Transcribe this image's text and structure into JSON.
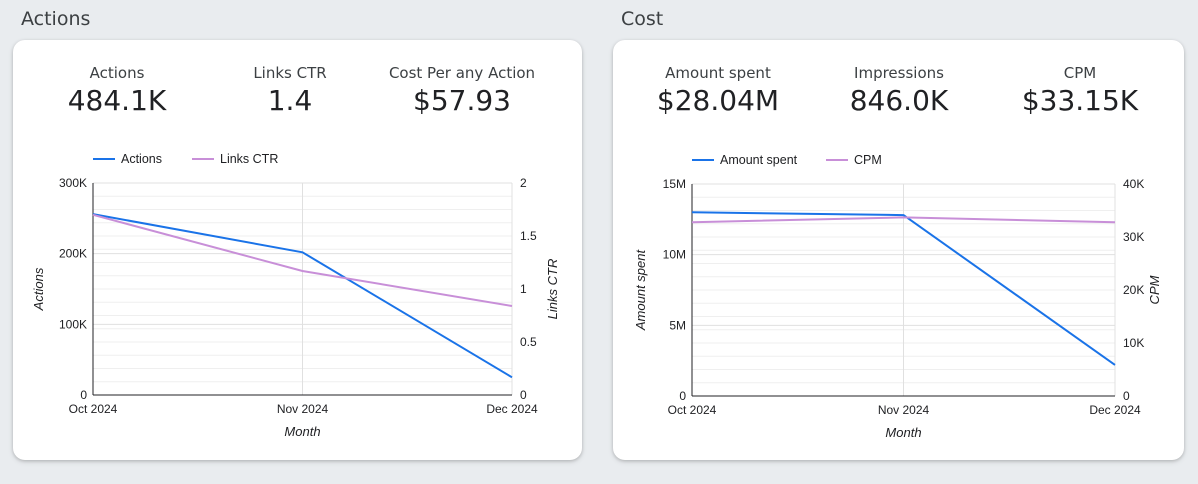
{
  "sections": {
    "actions": {
      "title": "Actions"
    },
    "cost": {
      "title": "Cost"
    }
  },
  "actions_kpis": [
    {
      "label": "Actions",
      "value": "484.1K"
    },
    {
      "label": "Links CTR",
      "value": "1.4"
    },
    {
      "label": "Cost Per any Action",
      "value": "$57.93"
    }
  ],
  "cost_kpis": [
    {
      "label": "Amount spent",
      "value": "$28.04M"
    },
    {
      "label": "Impressions",
      "value": "846.0K"
    },
    {
      "label": "CPM",
      "value": "$33.15K"
    }
  ],
  "colors": {
    "primary": "#1a73e8",
    "secondary": "#c88fd8",
    "grid": "#e0e0e0"
  },
  "chart_data": [
    {
      "type": "line",
      "x": [
        "Oct 2024",
        "Nov 2024",
        "Dec 2024"
      ],
      "xlabel": "Month",
      "ylabel_left": "Actions",
      "ylabel_right": "Links CTR",
      "ylim_left": [
        0,
        300000
      ],
      "ylim_right": [
        0,
        2
      ],
      "yticks_left": [
        "0",
        "100K",
        "200K",
        "300K"
      ],
      "yticks_right": [
        "0",
        "0.5",
        "1",
        "1.5",
        "2"
      ],
      "legend_position": "top-left",
      "series": [
        {
          "name": "Actions",
          "axis": "left",
          "color": "#1a73e8",
          "values": [
            256000,
            202000,
            25000
          ]
        },
        {
          "name": "Links CTR",
          "axis": "right",
          "color": "#c88fd8",
          "values": [
            1.7,
            1.17,
            0.84
          ]
        }
      ]
    },
    {
      "type": "line",
      "x": [
        "Oct 2024",
        "Nov 2024",
        "Dec 2024"
      ],
      "xlabel": "Month",
      "ylabel_left": "Amount spent",
      "ylabel_right": "CPM",
      "ylim_left": [
        0,
        15000000
      ],
      "ylim_right": [
        0,
        40000
      ],
      "yticks_left": [
        "0",
        "5M",
        "10M",
        "15M"
      ],
      "yticks_right": [
        "0",
        "10K",
        "20K",
        "30K",
        "40K"
      ],
      "legend_position": "top-left",
      "series": [
        {
          "name": "Amount spent",
          "axis": "left",
          "color": "#1a73e8",
          "values": [
            13000000,
            12800000,
            2200000
          ]
        },
        {
          "name": "CPM",
          "axis": "right",
          "color": "#c88fd8",
          "values": [
            32800,
            33700,
            32800
          ]
        }
      ]
    }
  ]
}
